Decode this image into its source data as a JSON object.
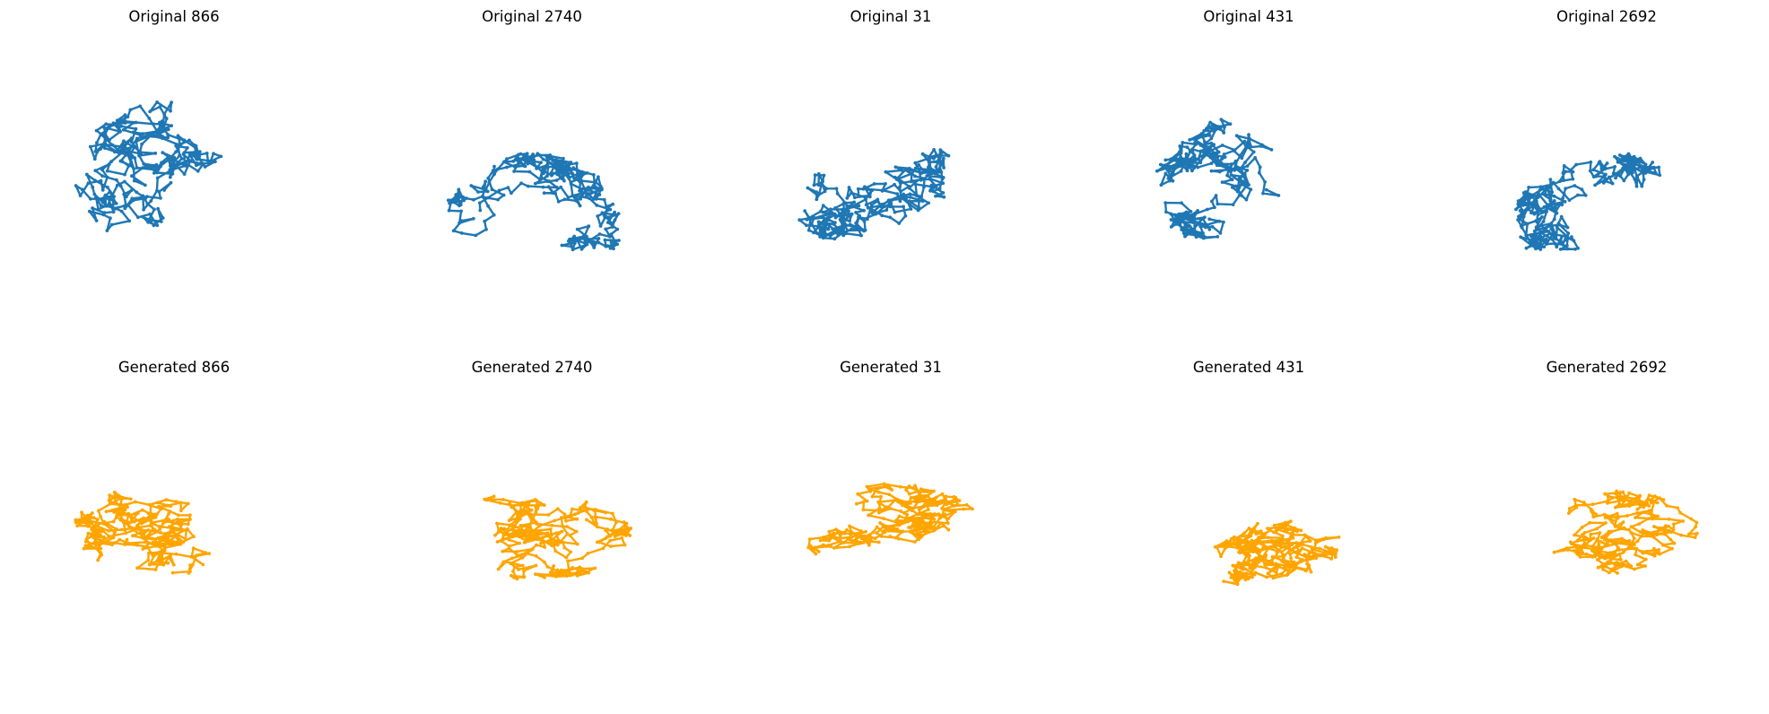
{
  "figure": {
    "description_rows": [
      "original",
      "generated"
    ]
  },
  "colors": {
    "original": "#1f77b4",
    "generated": "#ffa500"
  },
  "chart_data": [
    {
      "type": "line",
      "title": "Original 866",
      "shape": "blob-right-lobe",
      "color": "#1f77b4",
      "axis": "off"
    },
    {
      "type": "line",
      "title": "Original 2740",
      "shape": "arch",
      "color": "#1f77b4",
      "axis": "off"
    },
    {
      "type": "line",
      "title": "Original 31",
      "shape": "dome",
      "color": "#1f77b4",
      "axis": "off"
    },
    {
      "type": "line",
      "title": "Original 431",
      "shape": "wide-dome",
      "color": "#1f77b4",
      "axis": "off"
    },
    {
      "type": "line",
      "title": "Original 2692",
      "shape": "arch",
      "color": "#1f77b4",
      "axis": "off"
    },
    {
      "type": "line",
      "title": "Generated 866",
      "shape": "flat-blob",
      "color": "#ffa500",
      "axis": "off"
    },
    {
      "type": "line",
      "title": "Generated 2740",
      "shape": "flat-blob",
      "color": "#ffa500",
      "axis": "off"
    },
    {
      "type": "line",
      "title": "Generated 31",
      "shape": "flat-blob",
      "color": "#ffa500",
      "axis": "off"
    },
    {
      "type": "line",
      "title": "Generated 431",
      "shape": "flat-blob",
      "color": "#ffa500",
      "axis": "off"
    },
    {
      "type": "line",
      "title": "Generated 2692",
      "shape": "flat-blob",
      "color": "#ffa500",
      "axis": "off"
    }
  ]
}
